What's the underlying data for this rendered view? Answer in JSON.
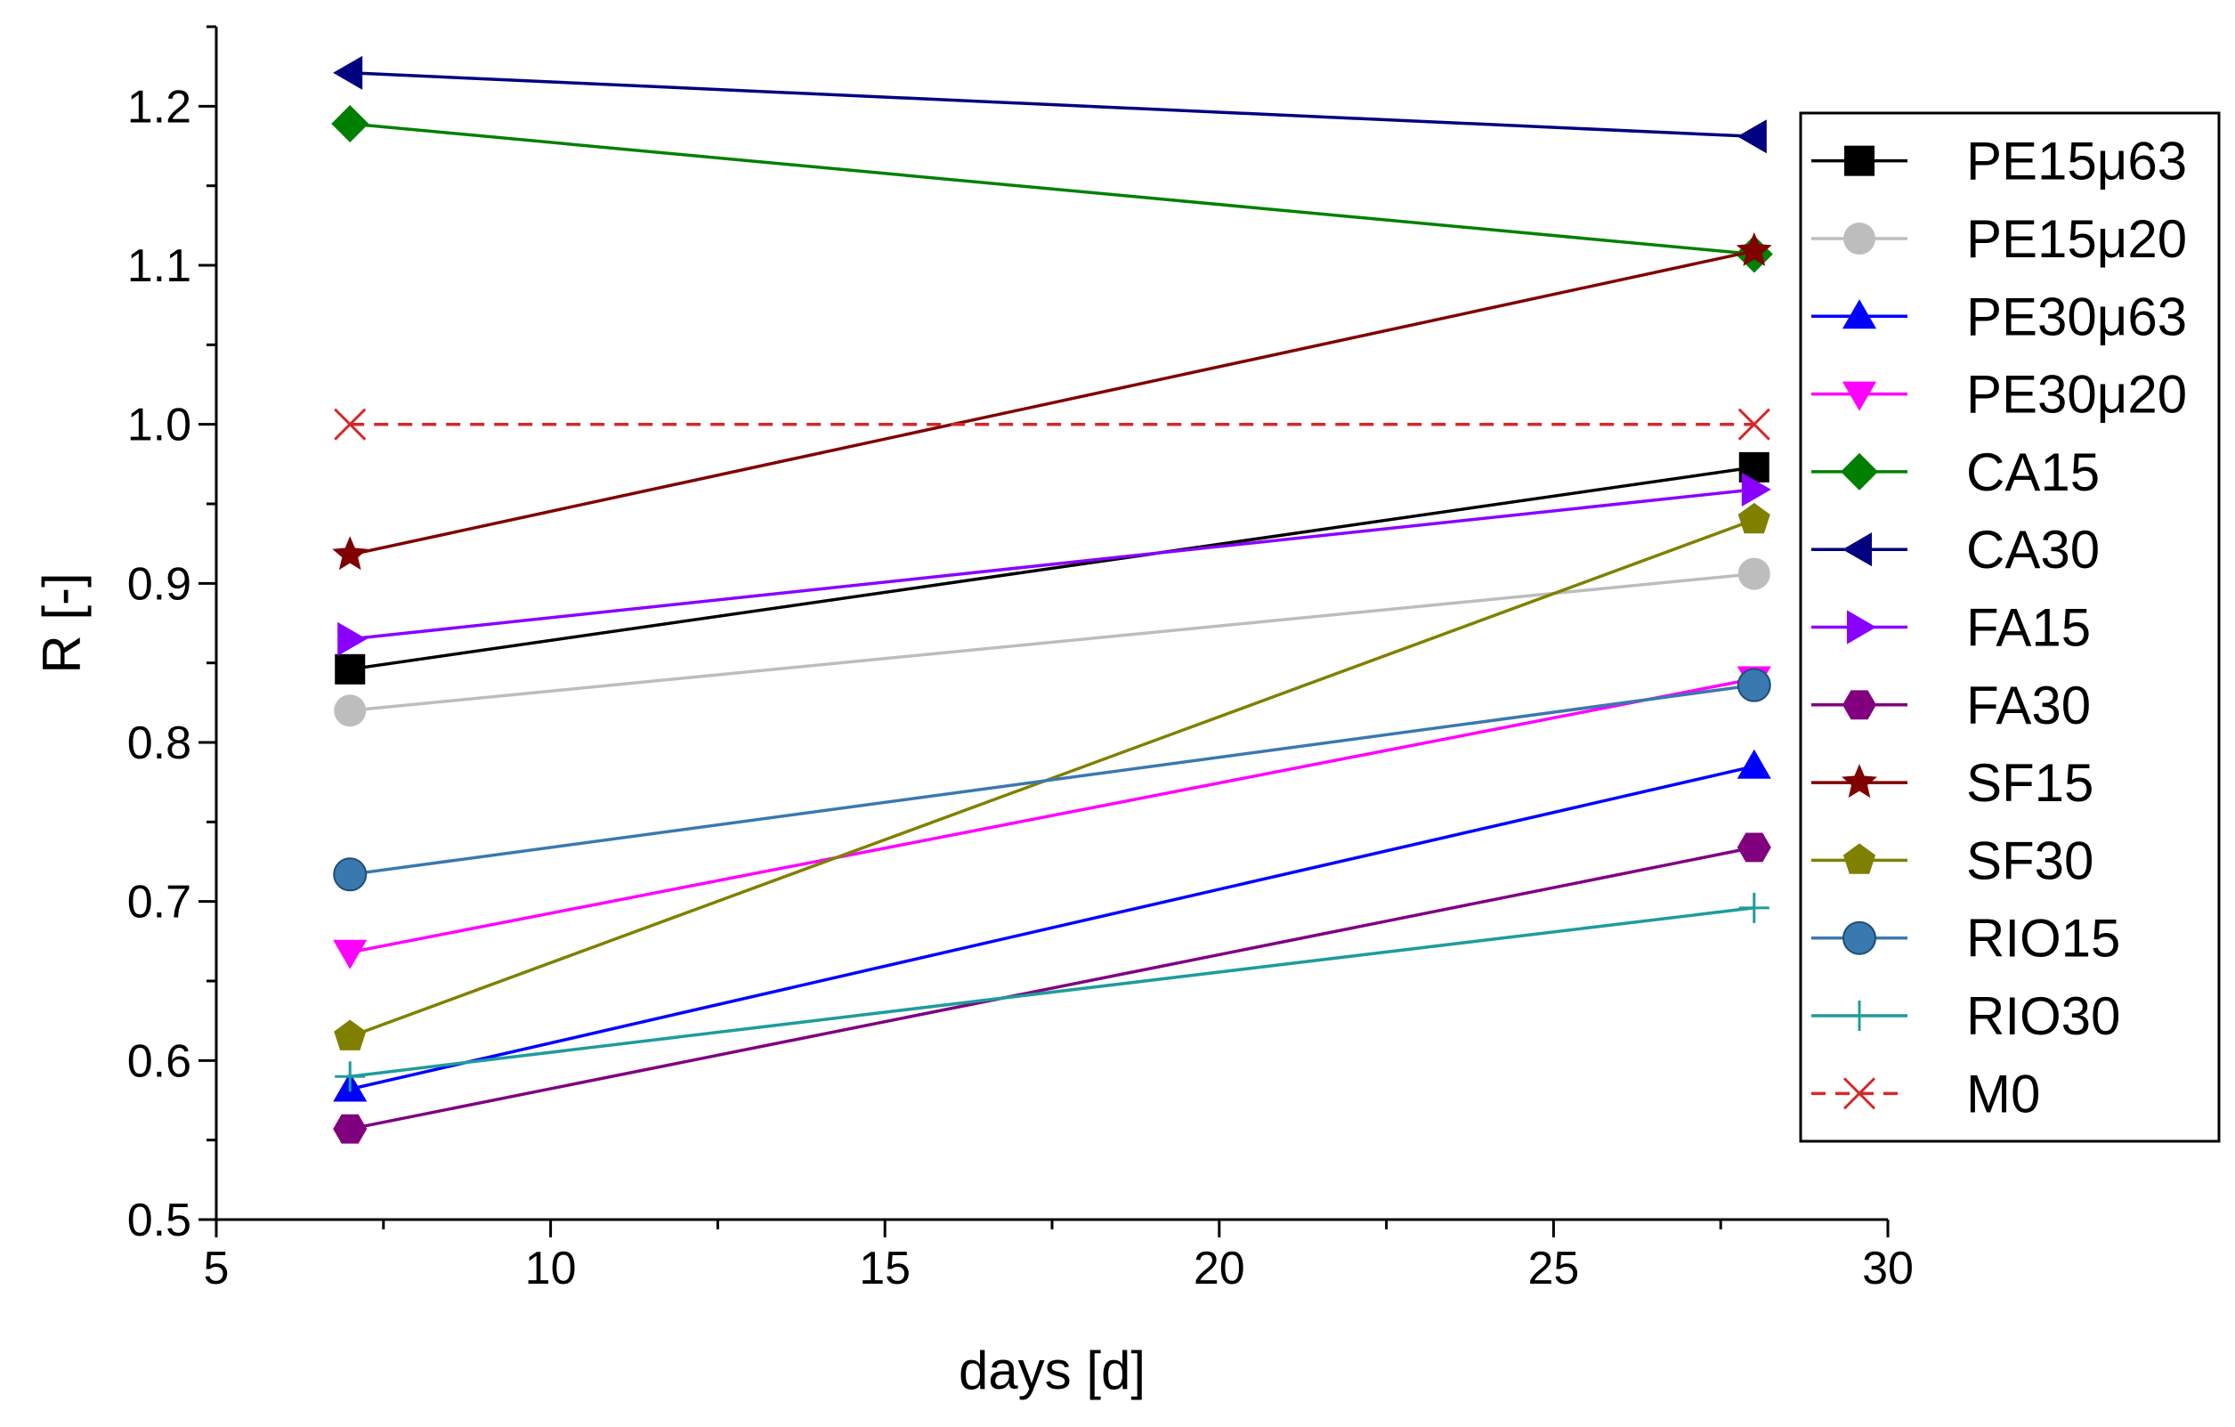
{
  "chart_data": {
    "type": "line",
    "title": "",
    "xlabel": "days [d]",
    "ylabel": "R [-]",
    "xlim": [
      5,
      30
    ],
    "ylim": [
      0.5,
      1.25
    ],
    "xticks": [
      5,
      10,
      15,
      20,
      25,
      30
    ],
    "xtick_labels": [
      "5",
      "10",
      "15",
      "20",
      "25",
      "30"
    ],
    "yticks": [
      0.5,
      0.6,
      0.7,
      0.8,
      0.9,
      1.0,
      1.1,
      1.2
    ],
    "ytick_labels": [
      "0.5",
      "0.6",
      "0.7",
      "0.8",
      "0.9",
      "1.0",
      "1.1",
      "1.2"
    ],
    "grid": false,
    "legend_position": "right",
    "x": [
      7,
      28
    ],
    "series": [
      {
        "name": "PE15μ63",
        "values": [
          0.846,
          0.973
        ],
        "color": "#000000",
        "marker": "square",
        "dash": false
      },
      {
        "name": "PE15μ20",
        "values": [
          0.82,
          0.906
        ],
        "color": "#bdbdbd",
        "marker": "circle",
        "dash": false
      },
      {
        "name": "PE30μ63",
        "values": [
          0.582,
          0.785
        ],
        "color": "#0000ff",
        "marker": "triangle-up",
        "dash": false
      },
      {
        "name": "PE30μ20",
        "values": [
          0.668,
          0.84
        ],
        "color": "#ff00ff",
        "marker": "triangle-down",
        "dash": false
      },
      {
        "name": "CA15",
        "values": [
          1.189,
          1.107
        ],
        "color": "#008000",
        "marker": "diamond",
        "dash": false
      },
      {
        "name": "CA30",
        "values": [
          1.221,
          1.181
        ],
        "color": "#000080",
        "marker": "triangle-left",
        "dash": false
      },
      {
        "name": "FA15",
        "values": [
          0.865,
          0.959
        ],
        "color": "#8a00ff",
        "marker": "triangle-right",
        "dash": false
      },
      {
        "name": "FA30",
        "values": [
          0.557,
          0.734
        ],
        "color": "#800080",
        "marker": "hexagon",
        "dash": false
      },
      {
        "name": "SF15",
        "values": [
          0.918,
          1.109
        ],
        "color": "#800000",
        "marker": "star",
        "dash": false
      },
      {
        "name": "SF30",
        "values": [
          0.615,
          0.94
        ],
        "color": "#808000",
        "marker": "pentagon",
        "dash": false
      },
      {
        "name": "RIO15",
        "values": [
          0.717,
          0.836
        ],
        "color": "#3a78b0",
        "marker": "sphere",
        "dash": false
      },
      {
        "name": "RIO30",
        "values": [
          0.59,
          0.696
        ],
        "color": "#1e9c9c",
        "marker": "plus",
        "dash": false
      },
      {
        "name": "M0",
        "values": [
          1.0,
          1.0
        ],
        "color": "#d62728",
        "marker": "x",
        "dash": true
      }
    ]
  }
}
